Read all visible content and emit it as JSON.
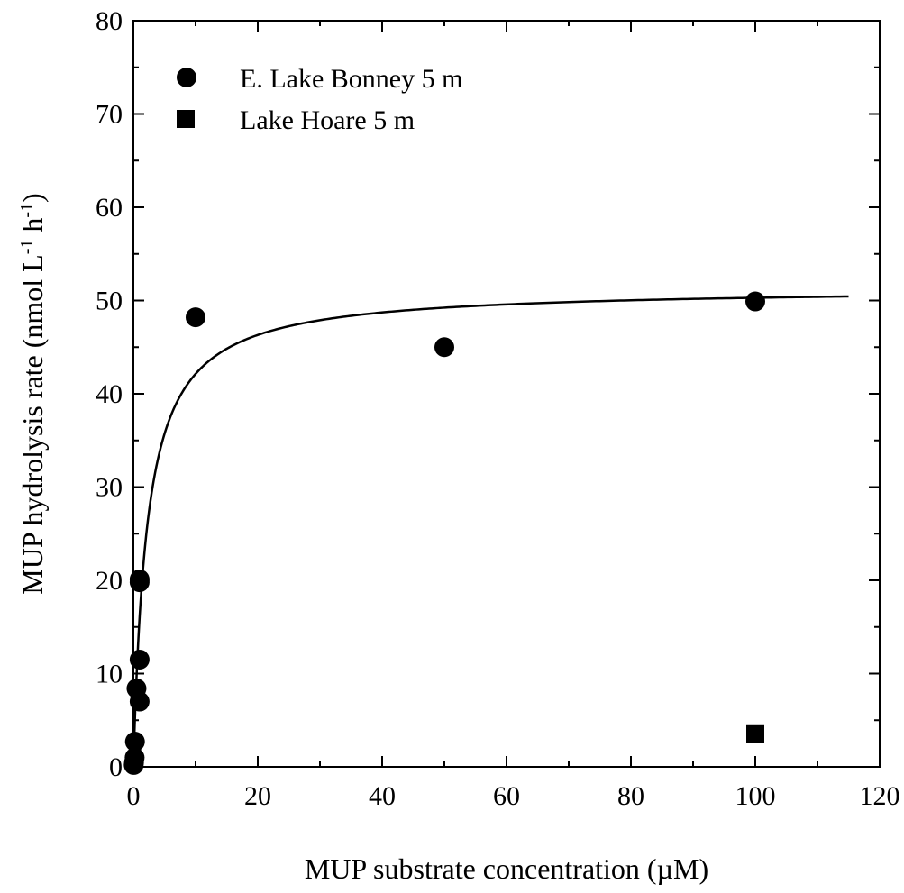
{
  "colors": {
    "ink": "#000000",
    "background": "#ffffff"
  },
  "chart_data": {
    "type": "scatter",
    "title": "",
    "xlabel": "MUP substrate concentration (µM)",
    "ylabel": {
      "main": "MUP hydrolysis rate (nmol L",
      "sup1": "-1",
      "mid": " h",
      "sup2": "-1",
      "end": ")"
    },
    "xlim": [
      0,
      120
    ],
    "ylim": [
      0,
      80
    ],
    "x_ticks": [
      0,
      20,
      40,
      60,
      80,
      100,
      120
    ],
    "y_ticks": [
      0,
      10,
      20,
      30,
      40,
      50,
      60,
      70,
      80
    ],
    "x_minor_step": 10,
    "y_minor_step": 5,
    "grid": false,
    "legend_position": "top-left",
    "series": [
      {
        "name": "E. Lake Bonney 5 m",
        "marker": "circle",
        "color": "#000000",
        "points": [
          {
            "x": 0.05,
            "y": 0.2
          },
          {
            "x": 0.1,
            "y": 0.5
          },
          {
            "x": 0.2,
            "y": 1.0
          },
          {
            "x": 0.25,
            "y": 2.7
          },
          {
            "x": 0.5,
            "y": 8.4
          },
          {
            "x": 1.0,
            "y": 7.0
          },
          {
            "x": 1.0,
            "y": 11.5
          },
          {
            "x": 1.0,
            "y": 19.8
          },
          {
            "x": 1.0,
            "y": 20.1
          },
          {
            "x": 10,
            "y": 48.2
          },
          {
            "x": 50,
            "y": 45.0
          },
          {
            "x": 100,
            "y": 49.9
          }
        ]
      },
      {
        "name": "Lake Hoare 5 m",
        "marker": "square",
        "color": "#000000",
        "points": [
          {
            "x": 100,
            "y": 3.5
          }
        ]
      }
    ],
    "fit_curve": {
      "model": "michaelis-menten",
      "vmax": 51.4,
      "km": 2.2,
      "x_range": [
        0,
        115
      ]
    }
  }
}
